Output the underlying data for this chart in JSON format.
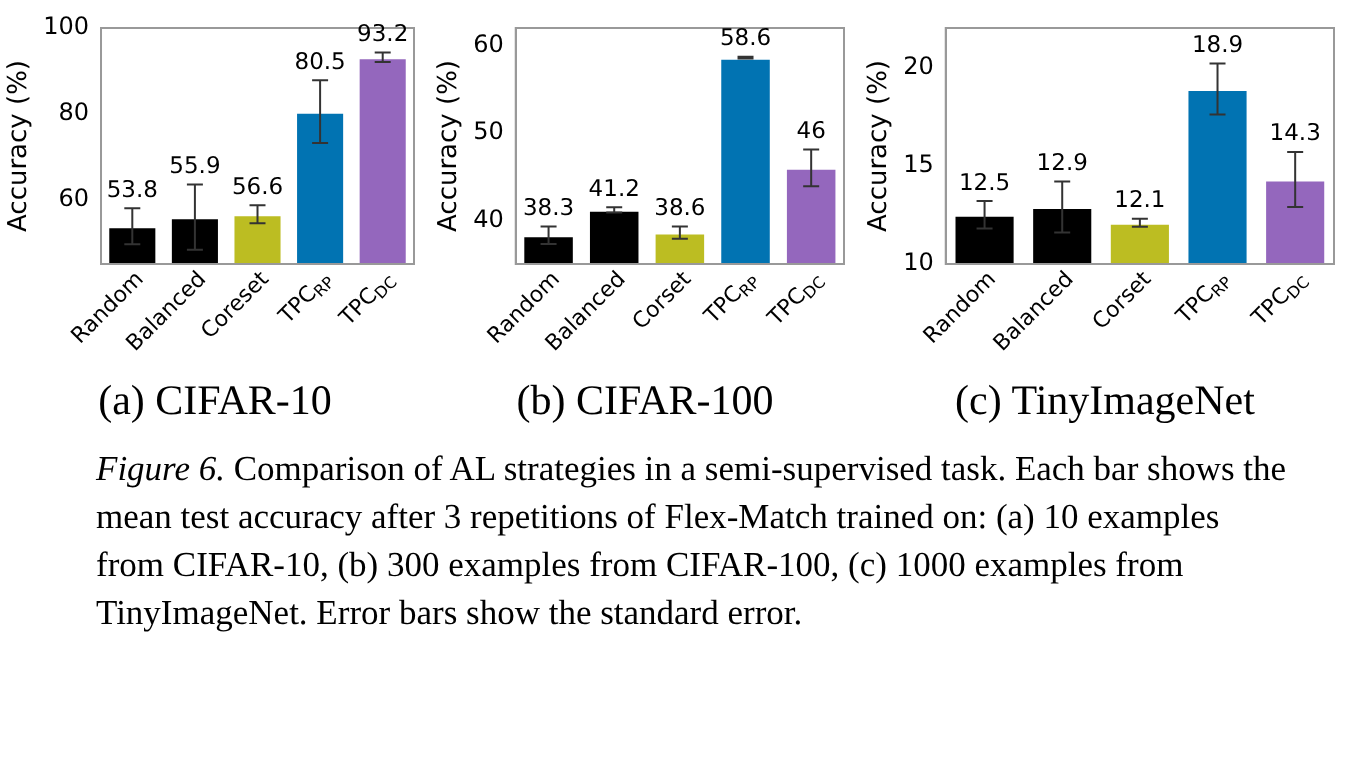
{
  "chart_data": [
    {
      "type": "bar",
      "title": "(a) CIFAR-10",
      "ylabel": "Accuracy (%)",
      "categories": [
        "Random",
        "Balanced",
        "Coreset",
        "TPC$_{RP}$",
        "TPC$_{DC}$"
      ],
      "values": [
        53.8,
        55.9,
        56.6,
        80.5,
        93.2
      ],
      "colors": [
        "#000000",
        "#000000",
        "#bcbd22",
        "#0173b2",
        "#9467bd"
      ],
      "errors": [
        4.2,
        7.6,
        2.1,
        7.3,
        1.1
      ],
      "ylim": [
        45,
        100
      ],
      "yticks": [
        60,
        80,
        100
      ],
      "data_labels": true,
      "grid": false,
      "annotations": [
        "Figure 6. Comparison of AL strategies in a semi-supervised task. Each bar shows the mean test accuracy after 3 repetitions of Flex-Match trained on: (a) 10 examples from CIFAR-10, (b) 300 examples from CIFAR-100, (c) 1000 examples from TinyImageNet. Error bars show the standard error."
      ]
    },
    {
      "type": "bar",
      "title": "(b) CIFAR-100",
      "ylabel": "Accuracy (%)",
      "categories": [
        "Random",
        "Balanced",
        "Corset",
        "TPC$_{RP}$",
        "TPC$_{DC}$"
      ],
      "values": [
        38.3,
        41.2,
        38.6,
        58.6,
        46
      ],
      "colors": [
        "#000000",
        "#000000",
        "#bcbd22",
        "#0173b2",
        "#9467bd"
      ],
      "errors": [
        1,
        0.3,
        0.7,
        0.1,
        2.1
      ],
      "ylim": [
        35,
        62
      ],
      "yticks": [
        40,
        50,
        60
      ],
      "data_labels": true,
      "grid": false
    },
    {
      "type": "bar",
      "title": "(c) TinyImageNet",
      "ylabel": "Accuracy (%)",
      "categories": [
        "Random",
        "Balanced",
        "Corset",
        "TPC$_{RP}$",
        "TPC$_{DC}$"
      ],
      "values": [
        12.5,
        12.9,
        12.1,
        18.9,
        14.3
      ],
      "colors": [
        "#000000",
        "#000000",
        "#bcbd22",
        "#0173b2",
        "#9467bd"
      ],
      "errors": [
        0.7,
        1.3,
        0.2,
        1.3,
        1.4
      ],
      "ylim": [
        10,
        22
      ],
      "yticks": [
        10,
        15,
        20
      ],
      "data_labels": true,
      "grid": false
    }
  ]
}
